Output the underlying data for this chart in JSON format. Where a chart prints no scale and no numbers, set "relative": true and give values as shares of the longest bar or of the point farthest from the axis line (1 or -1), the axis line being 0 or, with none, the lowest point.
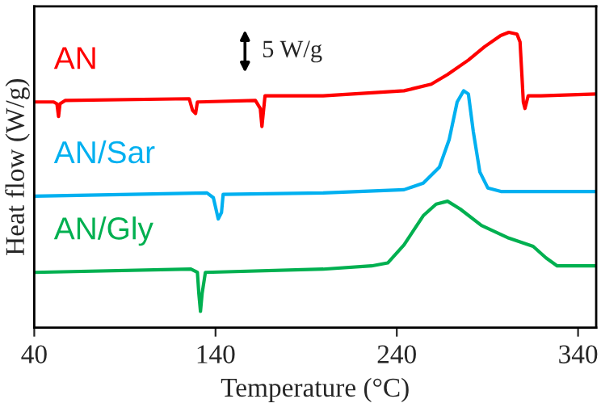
{
  "chart_data": {
    "type": "line",
    "relative": true,
    "xlabel": "Temperature (°C)",
    "ylabel": "Heat flow (W/g)",
    "xlim": [
      40,
      350
    ],
    "xticks": [
      40,
      140,
      240,
      340
    ],
    "tick_labels": "x",
    "grid": false,
    "legend": false,
    "annotations": [
      "5 W/g"
    ],
    "series": [
      {
        "name": "AN",
        "color": "#ff0000",
        "x": [
          40,
          50.7,
          52.5,
          53.4,
          54.2,
          57,
          125.5,
          127.3,
          129,
          130,
          162,
          164.7,
          165.6,
          167.3,
          199.4,
          244,
          259,
          268,
          279.5,
          288.4,
          297.3,
          301.8,
          306.3,
          308,
          309,
          309.8,
          310.7,
          312.5,
          319.6,
          350
        ],
        "values": [
          0.764,
          0.764,
          0.758,
          0.715,
          0.758,
          0.769,
          0.775,
          0.736,
          0.725,
          0.764,
          0.769,
          0.742,
          0.681,
          0.785,
          0.785,
          0.802,
          0.824,
          0.857,
          0.906,
          0.951,
          0.989,
          1.0,
          0.994,
          0.967,
          0.857,
          0.764,
          0.742,
          0.785,
          0.785,
          0.791
        ]
      },
      {
        "name": "AN/Sar",
        "color": "#00b0f0",
        "x": [
          40,
          135.3,
          138.8,
          141.5,
          143.3,
          144.2,
          199.4,
          244,
          254.6,
          263.5,
          268.9,
          273.3,
          276.9,
          279.5,
          282.2,
          285.8,
          290.2,
          297.4,
          350
        ],
        "values": [
          0.445,
          0.456,
          0.44,
          0.368,
          0.39,
          0.451,
          0.456,
          0.467,
          0.489,
          0.543,
          0.637,
          0.764,
          0.802,
          0.791,
          0.664,
          0.527,
          0.473,
          0.461,
          0.461
        ]
      },
      {
        "name": "AN/Gly",
        "color": "#00b050",
        "x": [
          40,
          126.4,
          130,
          130.8,
          131.7,
          132.6,
          134.4,
          199.4,
          226.1,
          235,
          244,
          254.6,
          261.7,
          268,
          275.1,
          286.7,
          301.8,
          315.2,
          322.3,
          328.5,
          350
        ],
        "values": [
          0.187,
          0.198,
          0.187,
          0.115,
          0.055,
          0.115,
          0.187,
          0.198,
          0.209,
          0.219,
          0.28,
          0.379,
          0.418,
          0.428,
          0.401,
          0.346,
          0.303,
          0.275,
          0.236,
          0.209,
          0.209
        ]
      }
    ]
  }
}
